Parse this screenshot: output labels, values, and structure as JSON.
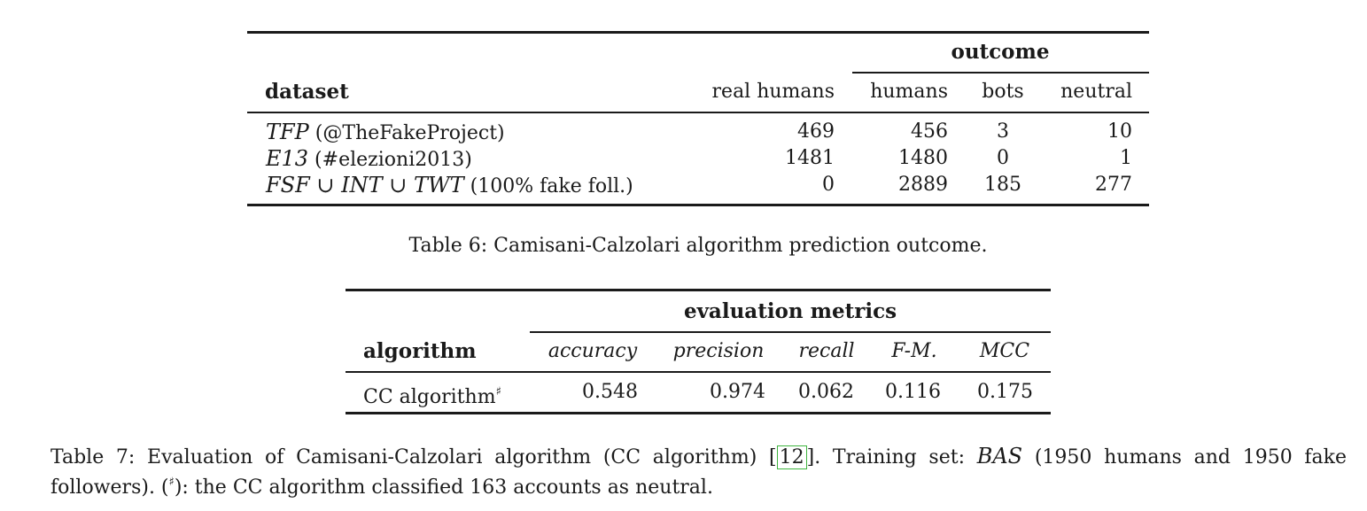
{
  "table6": {
    "group_header": "outcome",
    "headers": {
      "dataset": "dataset",
      "real_humans": "real humans",
      "humans": "humans",
      "bots": "bots",
      "neutral": "neutral"
    },
    "rows": [
      {
        "dataset_italic": "TFP",
        "dataset_rest": " (@TheFakeProject)",
        "real_humans": "469",
        "humans": "456",
        "bots": "3",
        "neutral": "10"
      },
      {
        "dataset_italic": "E13",
        "dataset_rest": " (#elezioni2013)",
        "real_humans": "1481",
        "humans": "1480",
        "bots": "0",
        "neutral": "1"
      },
      {
        "dataset_italic": "FSF ∪ INT ∪ TWT",
        "dataset_rest": " (100% fake foll.)",
        "real_humans": "0",
        "humans": "2889",
        "bots": "185",
        "neutral": "277"
      }
    ],
    "caption": "Table 6: Camisani-Calzolari algorithm prediction outcome."
  },
  "table7": {
    "group_header": "evaluation metrics",
    "headers": {
      "algorithm": "algorithm",
      "accuracy": "accuracy",
      "precision": "precision",
      "recall": "recall",
      "fm": "F-M.",
      "mcc": "MCC"
    },
    "row": {
      "algorithm": "CC algorithm",
      "sup": "♯",
      "accuracy": "0.548",
      "precision": "0.974",
      "recall": "0.062",
      "fm": "0.116",
      "mcc": "0.175"
    },
    "caption": {
      "part1": "Table 7: Evaluation of Camisani-Calzolari algorithm (CC algorithm) [",
      "cite": "12",
      "part2": "]. Training set: ",
      "bas": "BAS",
      "part3": " (1950 humans and 1950 fake",
      "line2_part1": "followers). (",
      "line2_sup": "♯",
      "line2_part2": "): the CC algorithm classified 163 accounts as neutral."
    }
  }
}
